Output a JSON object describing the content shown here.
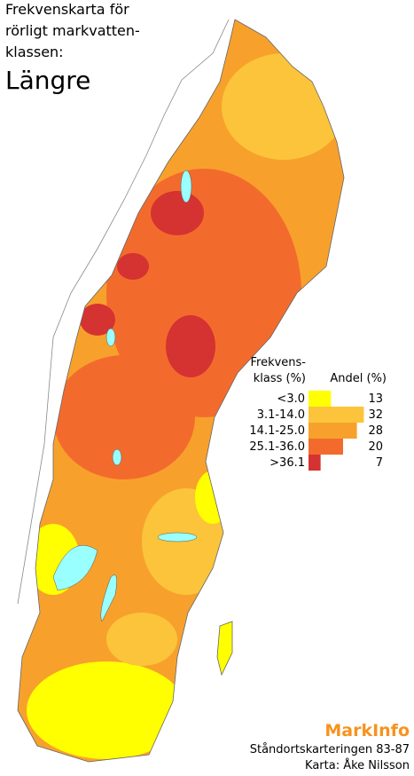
{
  "title_lines": [
    "Frekvenskarta för",
    "rörligt markvatten-",
    "klassen:"
  ],
  "subtitle": "Längre",
  "legend": {
    "class_header": [
      "Frekvens-",
      "klass (%)"
    ],
    "share_header": "Andel (%)",
    "classes": [
      {
        "label": "<3.0",
        "share": 13,
        "color": "#ffff00"
      },
      {
        "label": "3.1-14.0",
        "share": 32,
        "color": "#fcc43a"
      },
      {
        "label": "14.1-25.0",
        "share": 28,
        "color": "#f7a12c"
      },
      {
        "label": "25.1-36.0",
        "share": 20,
        "color": "#f36b2c"
      },
      {
        "label": ">36.1",
        "share": 7,
        "color": "#d53232"
      }
    ]
  },
  "brand": "MarkInfo",
  "credits": [
    "Ståndortskarteringen 83-87",
    "Karta: Åke Nilsson"
  ]
}
